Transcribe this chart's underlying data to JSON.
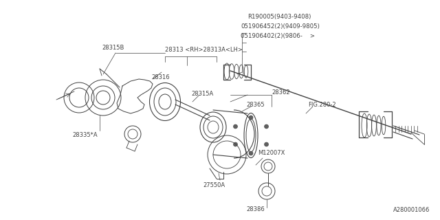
{
  "bg_color": "#ffffff",
  "line_color": "#404040",
  "text_color": "#404040",
  "fig_width": 6.4,
  "fig_height": 3.2,
  "diagram_ref": "A280001066",
  "label_28315B": "28315B",
  "label_28313": "28313 <RH>28313A<LH>",
  "label_28316": "28316",
  "label_28335A": "28335*A",
  "label_28315A": "28315A",
  "label_28362": "28362",
  "label_28365": "28365",
  "label_M12007X": "M12007X",
  "label_27550A": "27550A",
  "label_28386": "28386",
  "label_FIG": "FIG.280-2",
  "label_R190005": "R190005(9403-9408)",
  "label_051906452": "051906452(2)(9409-9805)",
  "label_051906402": "051906402(2)(9806-    >"
}
